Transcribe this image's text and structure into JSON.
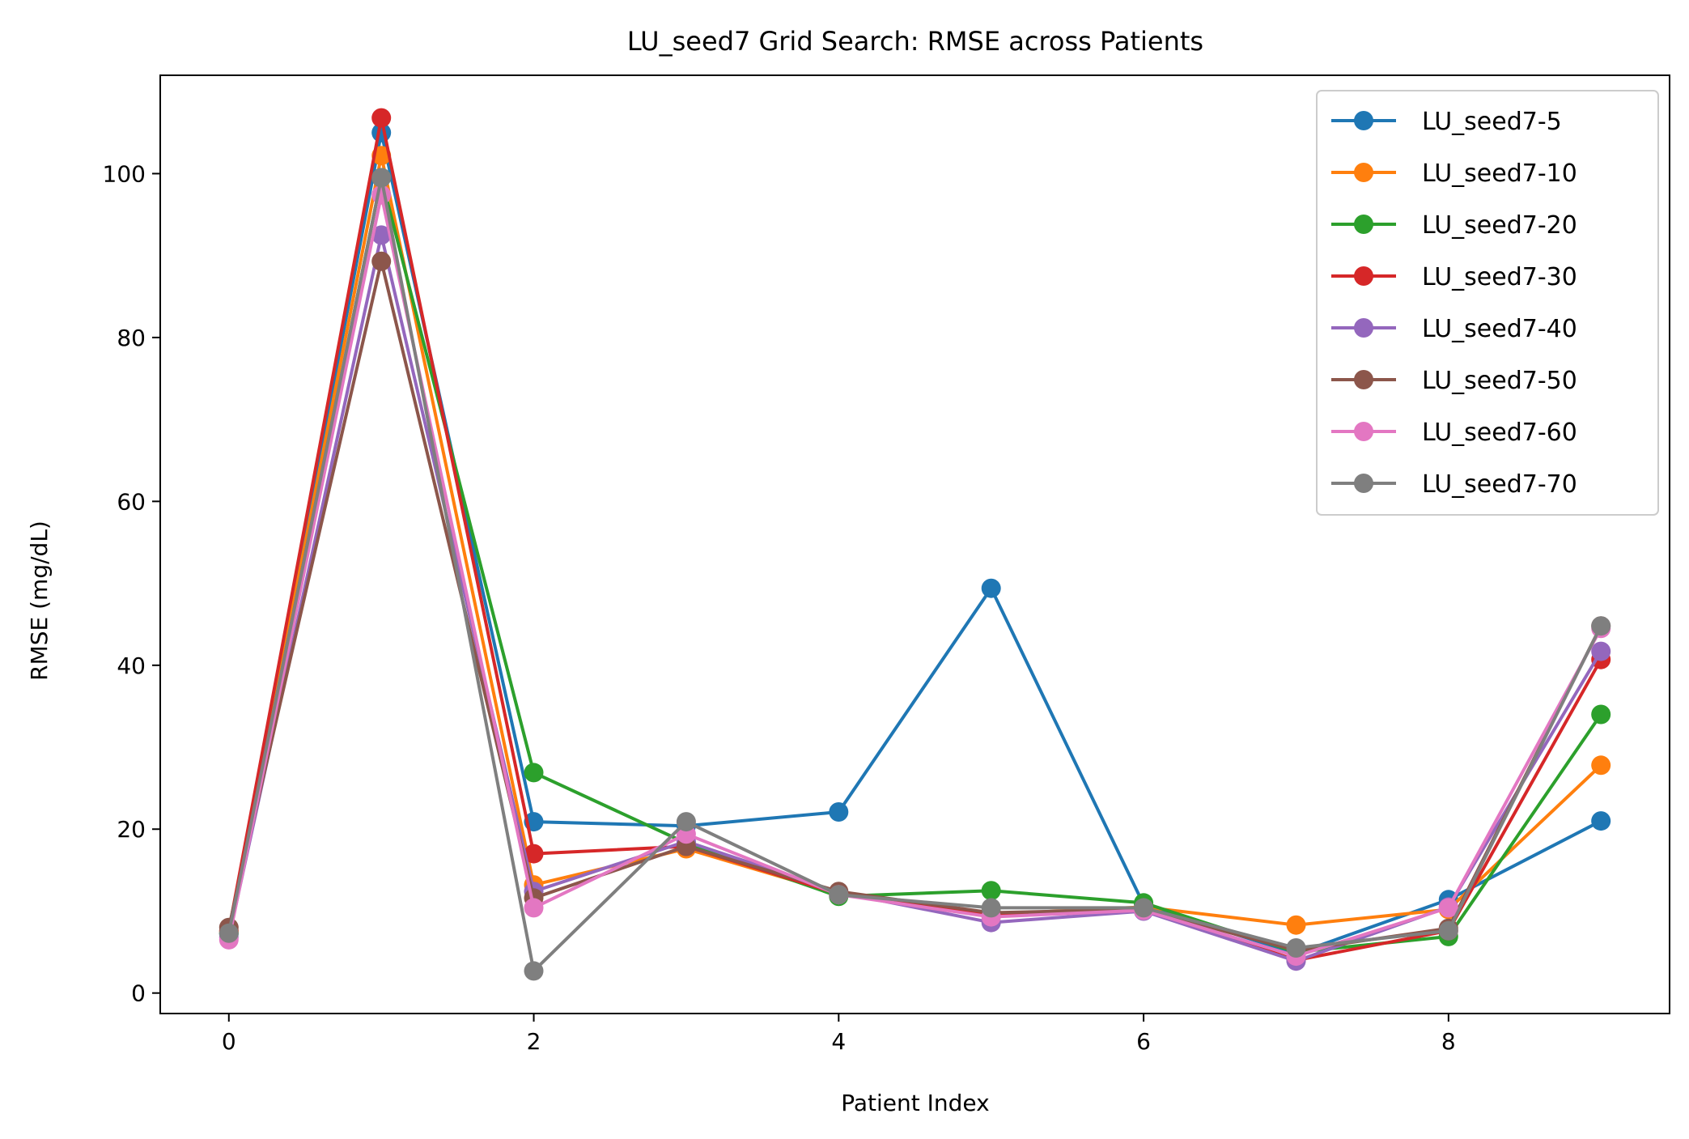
{
  "chart_data": {
    "type": "line",
    "title": "LU_seed7 Grid Search: RMSE across Patients",
    "xlabel": "Patient Index",
    "ylabel": "RMSE (mg/dL)",
    "xlim": [
      -0.45,
      9.45
    ],
    "ylim": [
      -2.5,
      112
    ],
    "xticks": [
      0,
      2,
      4,
      6,
      8
    ],
    "yticks": [
      0,
      20,
      40,
      60,
      80,
      100
    ],
    "grid": false,
    "legend_position": "top-right",
    "x": [
      0,
      1,
      2,
      3,
      4,
      5,
      6,
      7,
      8,
      9
    ],
    "series": [
      {
        "name": "LU_seed7-5",
        "color": "#1f77b4",
        "values": [
          7.2,
          105.0,
          20.9,
          20.4,
          22.1,
          49.4,
          10.8,
          4.8,
          11.4,
          21.0
        ]
      },
      {
        "name": "LU_seed7-10",
        "color": "#ff7f0e",
        "values": [
          7.5,
          102.2,
          13.2,
          17.6,
          12.1,
          9.6,
          10.5,
          8.3,
          10.2,
          27.8
        ]
      },
      {
        "name": "LU_seed7-20",
        "color": "#2ca02c",
        "values": [
          7.3,
          99.5,
          26.9,
          18.3,
          11.8,
          12.5,
          11.0,
          5.0,
          6.9,
          34.0
        ]
      },
      {
        "name": "LU_seed7-30",
        "color": "#d62728",
        "values": [
          7.6,
          106.8,
          17.0,
          17.9,
          12.1,
          9.5,
          10.3,
          4.0,
          7.6,
          40.7
        ]
      },
      {
        "name": "LU_seed7-40",
        "color": "#9467bd",
        "values": [
          6.8,
          92.5,
          12.4,
          18.5,
          12.3,
          8.6,
          10.0,
          3.9,
          10.5,
          41.7
        ]
      },
      {
        "name": "LU_seed7-50",
        "color": "#8c564b",
        "values": [
          8.0,
          89.3,
          11.6,
          17.9,
          12.4,
          9.8,
          10.2,
          5.2,
          7.9,
          44.8
        ]
      },
      {
        "name": "LU_seed7-60",
        "color": "#e377c2",
        "values": [
          6.5,
          97.4,
          10.4,
          19.4,
          12.0,
          9.3,
          10.1,
          4.5,
          10.4,
          44.5
        ]
      },
      {
        "name": "LU_seed7-70",
        "color": "#7f7f7f",
        "values": [
          7.3,
          99.5,
          2.7,
          20.9,
          12.0,
          10.4,
          10.4,
          5.5,
          7.6,
          44.8
        ]
      }
    ]
  }
}
